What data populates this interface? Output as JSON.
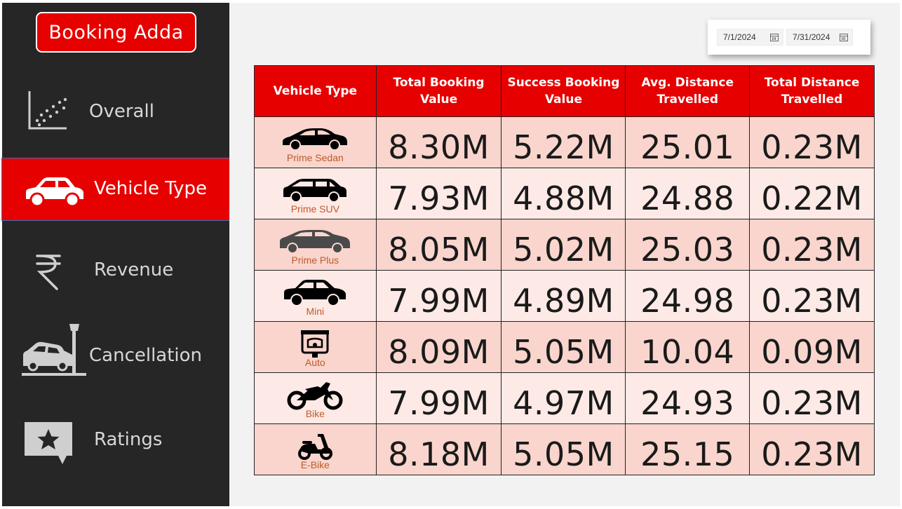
{
  "brand": {
    "title": "Booking Adda",
    "color": "#e60000"
  },
  "nav": [
    {
      "label": "Overall",
      "icon": "scatter-chart-icon",
      "active": false
    },
    {
      "label": "Vehicle Type",
      "icon": "car-icon",
      "active": true
    },
    {
      "label": "Revenue",
      "icon": "rupee-icon",
      "active": false
    },
    {
      "label": "Cancellation",
      "icon": "crashed-car-icon",
      "active": false
    },
    {
      "label": "Ratings",
      "icon": "star-message-icon",
      "active": false
    }
  ],
  "date_filter": {
    "start": "7/1/2024",
    "end": "7/31/2024"
  },
  "table": {
    "headers": [
      "Vehicle Type",
      "Total Booking Value",
      "Success Booking Value",
      "Avg. Distance Travelled",
      "Total Distance Travelled"
    ],
    "rows": [
      {
        "vehicle": "Prime Sedan",
        "icon": "sedan-car-icon",
        "total_booking": "8.30M",
        "success_booking": "5.22M",
        "avg_distance": "25.01",
        "total_distance": "0.23M"
      },
      {
        "vehicle": "Prime SUV",
        "icon": "suv-car-icon",
        "total_booking": "7.93M",
        "success_booking": "4.88M",
        "avg_distance": "24.88",
        "total_distance": "0.22M"
      },
      {
        "vehicle": "Prime Plus",
        "icon": "premium-car-icon",
        "total_booking": "8.05M",
        "success_booking": "5.02M",
        "avg_distance": "25.03",
        "total_distance": "0.23M"
      },
      {
        "vehicle": "Mini",
        "icon": "mini-car-icon",
        "total_booking": "7.99M",
        "success_booking": "4.89M",
        "avg_distance": "24.98",
        "total_distance": "0.23M"
      },
      {
        "vehicle": "Auto",
        "icon": "auto-rickshaw-icon",
        "total_booking": "8.09M",
        "success_booking": "5.05M",
        "avg_distance": "10.04",
        "total_distance": "0.09M"
      },
      {
        "vehicle": "Bike",
        "icon": "motorbike-icon",
        "total_booking": "7.99M",
        "success_booking": "4.97M",
        "avg_distance": "24.93",
        "total_distance": "0.23M"
      },
      {
        "vehicle": "E-Bike",
        "icon": "scooter-icon",
        "total_booking": "8.18M",
        "success_booking": "5.05M",
        "avg_distance": "25.15",
        "total_distance": "0.23M"
      }
    ]
  },
  "colors": {
    "header_red": "#e60000",
    "row_dark": "#f9d5cd",
    "row_light": "#fdeae6",
    "sidebar_bg": "#262626",
    "vehicle_label": "#c05a28"
  }
}
